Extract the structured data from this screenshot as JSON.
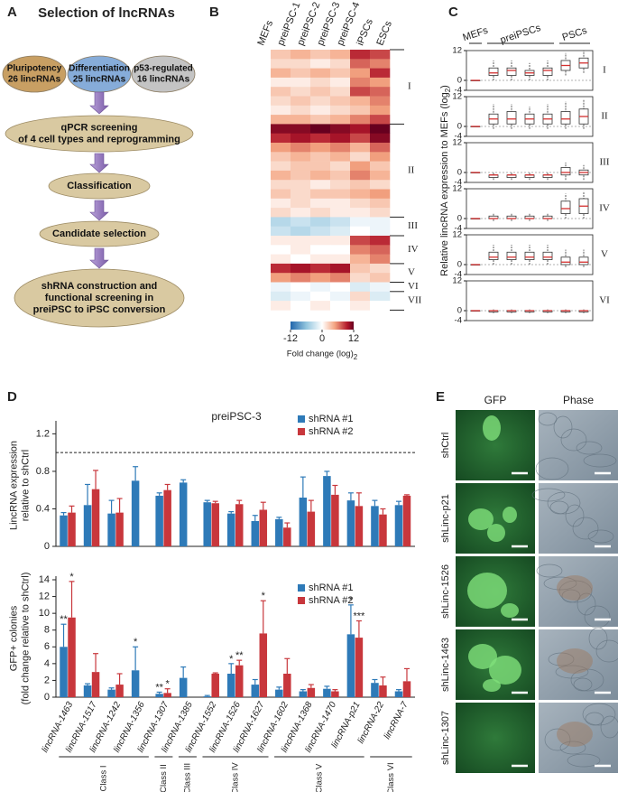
{
  "panel_a": {
    "label": "A",
    "title": "Selection of lncRNAs",
    "sources": [
      [
        "Pluripotency",
        "26 lincRNAs"
      ],
      [
        "Differentiation",
        "25 lincRNAs"
      ],
      [
        "p53-regulated",
        "16 lincRNAs"
      ]
    ],
    "steps": [
      [
        "qPCR screening",
        "of 4 cell types and reprogramming"
      ],
      [
        "Classification"
      ],
      [
        "Candidate selection"
      ],
      [
        "shRNA construction and",
        "functional screening in",
        "preiPSC to iPSC conversion"
      ]
    ]
  },
  "panel_b": {
    "label": "B",
    "type": "heatmap",
    "columns": [
      "MEFs",
      "preiPSC-1",
      "preiPSC-2",
      "preiPSC-3",
      "preiPSC-4",
      "iPSCs",
      "ESCs"
    ],
    "groups": [
      {
        "label": "I",
        "rows": [
          [
            0,
            3,
            4,
            3,
            4,
            9,
            8
          ],
          [
            0,
            2,
            2,
            1,
            2,
            7,
            6
          ],
          [
            0,
            4,
            3,
            4,
            3,
            5,
            9
          ],
          [
            0,
            1,
            1,
            2,
            1,
            6,
            5
          ],
          [
            0,
            3,
            2,
            3,
            2,
            8,
            7
          ],
          [
            0,
            2,
            3,
            2,
            3,
            4,
            6
          ],
          [
            0,
            1,
            2,
            1,
            2,
            3,
            5
          ],
          [
            0,
            4,
            4,
            3,
            4,
            6,
            8
          ]
        ]
      },
      {
        "label": "II",
        "rows": [
          [
            0,
            11,
            11,
            12,
            11,
            10,
            12
          ],
          [
            0,
            9,
            10,
            9,
            10,
            8,
            11
          ],
          [
            0,
            5,
            6,
            5,
            6,
            4,
            7
          ],
          [
            0,
            3,
            4,
            3,
            4,
            2,
            5
          ],
          [
            0,
            2,
            3,
            3,
            2,
            5,
            3
          ],
          [
            0,
            4,
            3,
            4,
            3,
            6,
            4
          ],
          [
            0,
            2,
            2,
            1,
            2,
            3,
            2
          ],
          [
            0,
            3,
            2,
            3,
            3,
            4,
            5
          ],
          [
            0,
            1,
            2,
            1,
            1,
            2,
            3
          ],
          [
            0,
            2,
            1,
            2,
            1,
            1,
            2
          ]
        ]
      },
      {
        "label": "III",
        "rows": [
          [
            0,
            -4,
            -3,
            -4,
            -3,
            -1,
            -1
          ],
          [
            0,
            -3,
            -4,
            -3,
            -2,
            0,
            -1
          ]
        ]
      },
      {
        "label": "IV",
        "rows": [
          [
            0,
            1,
            1,
            1,
            1,
            8,
            9
          ],
          [
            0,
            0,
            1,
            0,
            0,
            6,
            7
          ],
          [
            0,
            1,
            0,
            1,
            1,
            4,
            6
          ]
        ]
      },
      {
        "label": "V",
        "rows": [
          [
            0,
            9,
            10,
            9,
            10,
            3,
            2
          ],
          [
            0,
            5,
            6,
            5,
            6,
            2,
            3
          ]
        ]
      },
      {
        "label": "VI",
        "rows": [
          [
            0,
            -1,
            0,
            -1,
            0,
            -2,
            -1
          ]
        ]
      },
      {
        "label": "VII",
        "rows": [
          [
            0,
            -2,
            -1,
            0,
            -1,
            2,
            -2
          ],
          [
            0,
            1,
            0,
            1,
            0,
            1,
            0
          ]
        ]
      }
    ],
    "colorbar": {
      "lim": [
        -12,
        12
      ],
      "ticks": [
        -12,
        0,
        12
      ],
      "label": "Fold change (log)",
      "label_sub": "2"
    }
  },
  "panel_c": {
    "label": "C",
    "type": "box",
    "ylabel": "Relative lincRNA expression to MEFs (log",
    "ylabel_sub": "2",
    "ylabel_end": ")",
    "header": [
      "MEFs",
      "preiPSCs",
      "PSCs"
    ],
    "ylim": [
      -4,
      12
    ],
    "yticks": [
      12,
      0,
      -4
    ],
    "panels": [
      {
        "label": "I",
        "boxes": [
          [
            0,
            0,
            0,
            0,
            0
          ],
          [
            0,
            2,
            3,
            5,
            8
          ],
          [
            0,
            2,
            4,
            5,
            8
          ],
          [
            0,
            2,
            3,
            4,
            7
          ],
          [
            0,
            2,
            4,
            5,
            8
          ],
          [
            2,
            4,
            6,
            8,
            11
          ],
          [
            3,
            5,
            7,
            9,
            12
          ]
        ]
      },
      {
        "label": "II",
        "boxes": [
          [
            0,
            0,
            0,
            0,
            0
          ],
          [
            -1,
            1,
            3,
            5,
            9
          ],
          [
            -1,
            1,
            3,
            6,
            9
          ],
          [
            -1,
            1,
            3,
            5,
            8
          ],
          [
            -1,
            1,
            3,
            5,
            9
          ],
          [
            -1,
            1,
            3,
            6,
            10
          ],
          [
            -1,
            1,
            4,
            7,
            11
          ]
        ]
      },
      {
        "label": "III",
        "boxes": [
          [
            0,
            0,
            0,
            0,
            0
          ],
          [
            -3,
            -2,
            -1,
            -1,
            0
          ],
          [
            -3,
            -2,
            -1,
            -1,
            0
          ],
          [
            -3,
            -2,
            -1,
            -1,
            0
          ],
          [
            -3,
            -2,
            -1,
            -1,
            0
          ],
          [
            -3,
            -1,
            0,
            2,
            4
          ],
          [
            -3,
            -1,
            0,
            1,
            3
          ]
        ]
      },
      {
        "label": "IV",
        "boxes": [
          [
            0,
            0,
            0,
            0,
            0
          ],
          [
            -1,
            0,
            0,
            1,
            2
          ],
          [
            -1,
            0,
            0,
            1,
            2
          ],
          [
            -1,
            0,
            0,
            1,
            2
          ],
          [
            -1,
            0,
            0,
            1,
            2
          ],
          [
            0,
            2,
            4,
            7,
            10
          ],
          [
            0,
            2,
            5,
            8,
            11
          ]
        ]
      },
      {
        "label": "V",
        "boxes": [
          [
            0,
            0,
            0,
            0,
            0
          ],
          [
            0,
            2,
            3,
            5,
            8
          ],
          [
            0,
            2,
            3,
            5,
            8
          ],
          [
            0,
            2,
            3,
            5,
            8
          ],
          [
            0,
            2,
            3,
            5,
            8
          ],
          [
            -1,
            0,
            1,
            3,
            6
          ],
          [
            -1,
            0,
            1,
            3,
            6
          ]
        ]
      },
      {
        "label": "VI",
        "boxes": [
          [
            0,
            0,
            0,
            0,
            0
          ],
          [
            -1,
            -0.5,
            0,
            0,
            0.5
          ],
          [
            -1,
            -0.5,
            0,
            0,
            0.5
          ],
          [
            -1,
            -0.5,
            0,
            0,
            0.5
          ],
          [
            -1,
            -0.5,
            0,
            0,
            0.5
          ],
          [
            -1,
            -0.5,
            0,
            0,
            0.5
          ],
          [
            -1,
            -0.5,
            0,
            0,
            0.5
          ]
        ]
      }
    ]
  },
  "panel_d": {
    "label": "D",
    "categories": [
      "lincRNA-1463",
      "lincRNA-1517",
      "lincRNA-1242",
      "lincRNA-1356",
      "lincRNA-1307",
      "lincRNA-1385",
      "lincRNA-1552",
      "lincRNA-1526",
      "lincRNA-1627",
      "lincRNA-1602",
      "lincRNA-1368",
      "lincRNA-1470",
      "lincRNA-p21",
      "lincRNA-22",
      "lincRNA-7"
    ],
    "classes": [
      {
        "label": "Class I",
        "members": [
          "lincRNA-1463",
          "lincRNA-1356"
        ]
      },
      {
        "label": "Class II",
        "members": [
          "lincRNA-1307",
          "lincRNA-1307"
        ]
      },
      {
        "label": "Class III",
        "members": [
          "lincRNA-1385",
          "lincRNA-1385"
        ]
      },
      {
        "label": "Class IV",
        "members": [
          "lincRNA-1552",
          "lincRNA-1627"
        ]
      },
      {
        "label": "Class V",
        "members": [
          "lincRNA-1602",
          "lincRNA-p21"
        ]
      },
      {
        "label": "Class VI",
        "members": [
          "lincRNA-22",
          "lincRNA-7"
        ]
      }
    ],
    "charts": [
      {
        "type": "bar",
        "title": "preiPSC-3",
        "ylabel": [
          "LincRNA expression",
          "relative to shCtrl"
        ],
        "ylim": [
          0,
          1.3
        ],
        "yticks": [
          0,
          0.4,
          0.8,
          1.2
        ],
        "reference": 1,
        "series": [
          {
            "name": "shRNA #1",
            "color": "#2e7ab8",
            "values": [
              0.33,
              0.44,
              0.35,
              0.7,
              0.54,
              0.68,
              0.47,
              0.35,
              0.27,
              0.29,
              0.52,
              0.75,
              0.49,
              0.43,
              0.44
            ],
            "errors": [
              0.03,
              0.22,
              0.14,
              0.15,
              0.03,
              0.03,
              0.02,
              0.02,
              0.06,
              0.02,
              0.22,
              0.05,
              0.08,
              0.06,
              0.04
            ]
          },
          {
            "name": "shRNA #2",
            "color": "#c8373c",
            "values": [
              0.36,
              0.61,
              0.36,
              null,
              0.6,
              null,
              0.46,
              0.45,
              0.39,
              0.2,
              0.37,
              0.55,
              0.43,
              0.34,
              0.54
            ],
            "errors": [
              0.07,
              0.2,
              0.15,
              null,
              0.06,
              null,
              0.02,
              0.04,
              0.08,
              0.05,
              0.12,
              0.1,
              0.14,
              0.06,
              0.01
            ]
          }
        ]
      },
      {
        "type": "bar",
        "ylabel": [
          "GFP+ colonies",
          "(fold change relative to shCtrl)"
        ],
        "ylim": [
          0,
          14
        ],
        "yticks": [
          0,
          2,
          4,
          6,
          8,
          10,
          12,
          14
        ],
        "series": [
          {
            "name": "shRNA #1",
            "color": "#2e7ab8",
            "values": [
              6.0,
              1.4,
              0.9,
              3.2,
              0.4,
              2.3,
              0.1,
              2.8,
              1.5,
              0.9,
              0.7,
              1.0,
              7.5,
              1.7,
              0.7
            ],
            "errors": [
              2.7,
              0.2,
              0.2,
              2.8,
              0.2,
              1.3,
              0.1,
              1.2,
              0.6,
              0.3,
              0.2,
              0.3,
              3.5,
              0.4,
              0.2
            ],
            "stars": [
              "**",
              null,
              null,
              "*",
              "**",
              null,
              null,
              "*",
              null,
              null,
              null,
              null,
              "*",
              null,
              null
            ]
          },
          {
            "name": "shRNA #2",
            "color": "#c8373c",
            "values": [
              9.5,
              3.0,
              1.5,
              null,
              0.5,
              null,
              2.8,
              3.8,
              7.6,
              2.8,
              1.1,
              0.7,
              7.1,
              1.4,
              1.9
            ],
            "errors": [
              4.3,
              2.2,
              1.3,
              null,
              0.5,
              null,
              0.1,
              0.6,
              3.9,
              1.8,
              0.4,
              0.2,
              2.0,
              1.0,
              1.5
            ],
            "stars": [
              "*",
              null,
              null,
              null,
              "*",
              null,
              null,
              "**",
              "*",
              null,
              null,
              null,
              "***",
              null,
              null
            ]
          }
        ]
      }
    ]
  },
  "panel_e": {
    "label": "E",
    "columns": [
      "GFP",
      "Phase"
    ],
    "rows": [
      "shCtrl",
      "shLinc-p21",
      "shLinc-1526",
      "shLinc-1463",
      "shLinc-1307"
    ]
  }
}
